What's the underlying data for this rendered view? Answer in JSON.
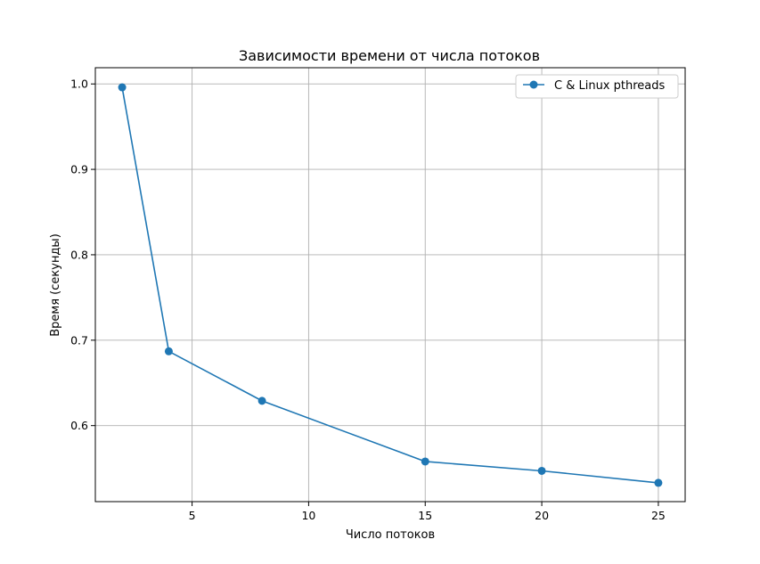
{
  "chart_data": {
    "type": "line",
    "title": "Зависимости времени от числа потоков",
    "xlabel": "Число потоков",
    "ylabel": "Время (секунды)",
    "xlim": [
      0.85,
      26.15
    ],
    "ylim": [
      0.511,
      1.019
    ],
    "xticks": [
      5,
      10,
      15,
      20,
      25
    ],
    "yticks": [
      0.6,
      0.7,
      0.8,
      0.9,
      1.0
    ],
    "xtick_labels": [
      "5",
      "10",
      "15",
      "20",
      "25"
    ],
    "ytick_labels": [
      "0.6",
      "0.7",
      "0.8",
      "0.9",
      "1.0"
    ],
    "grid": true,
    "legend_position": "top-right",
    "series": [
      {
        "name": "C & Linux pthreads",
        "color": "#1f77b4",
        "marker": "circle",
        "x": [
          2,
          4,
          8,
          15,
          20,
          25
        ],
        "y": [
          0.996,
          0.687,
          0.629,
          0.558,
          0.547,
          0.533
        ]
      }
    ]
  }
}
